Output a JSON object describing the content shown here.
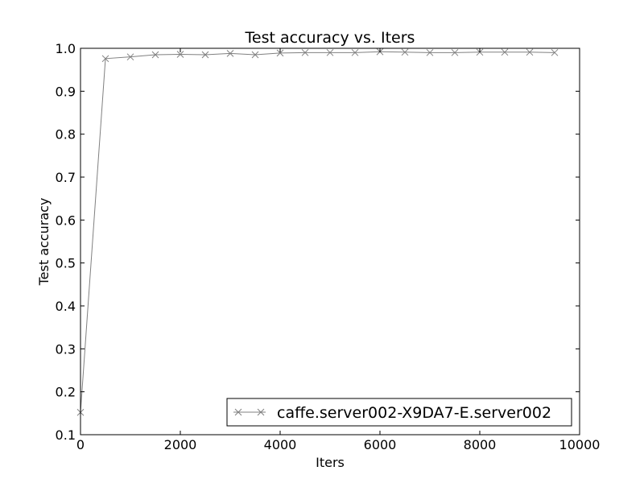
{
  "chart_data": {
    "type": "line",
    "title": "Test accuracy  vs. Iters",
    "xlabel": "Iters",
    "ylabel": "Test accuracy",
    "xlim": [
      0,
      10000
    ],
    "ylim": [
      0.1,
      1.0
    ],
    "xticks": [
      "0",
      "2000",
      "4000",
      "6000",
      "8000",
      "10000"
    ],
    "yticks": [
      "0.1",
      "0.2",
      "0.3",
      "0.4",
      "0.5",
      "0.6",
      "0.7",
      "0.8",
      "0.9",
      "1.0"
    ],
    "grid": false,
    "legend_position": "lower-right",
    "series": [
      {
        "name": "caffe.server002-X9DA7-E.server002",
        "color": "#808080",
        "marker": "x",
        "x": [
          0,
          500,
          1000,
          1500,
          2000,
          2500,
          3000,
          3500,
          4000,
          4500,
          5000,
          5500,
          6000,
          6500,
          7000,
          7500,
          8000,
          8500,
          9000,
          9500
        ],
        "y": [
          0.152,
          0.976,
          0.98,
          0.985,
          0.986,
          0.985,
          0.988,
          0.985,
          0.989,
          0.99,
          0.99,
          0.99,
          0.992,
          0.991,
          0.99,
          0.99,
          0.991,
          0.991,
          0.991,
          0.99
        ]
      }
    ]
  }
}
